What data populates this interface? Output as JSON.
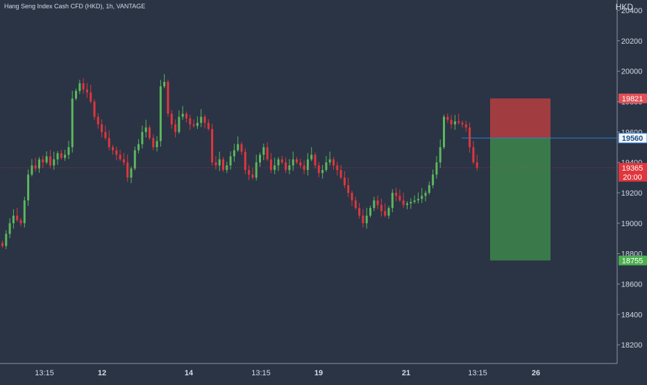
{
  "symbol": "Hang Seng Index Cash CFD (HKD), 1h, VANTAGE",
  "currency": "HKD",
  "colors": {
    "background": "#2a3445",
    "up": "#5cb85c",
    "down": "#e0363d",
    "text": "#d6dbe4",
    "entry_line": "#2f7fd8",
    "stop_zone": "#a13c41",
    "target_zone": "#3a7a4a",
    "stop_badge": "#e04f56",
    "entry_badge": "#1a4f8c",
    "price_badge": "#e0363d",
    "target_badge": "#4caf50"
  },
  "x_axis_labels": [
    "13:15",
    "12",
    "14",
    "13:15",
    "19",
    "21",
    "13:15",
    "26"
  ],
  "badges": {
    "stop": "19821",
    "entry": "19560",
    "price": "19365",
    "countdown": "20:00",
    "target": "18755"
  },
  "chart_data": {
    "type": "candlestick",
    "ylim": [
      18100,
      20450
    ],
    "y_ticks": [
      18200,
      18400,
      18600,
      18800,
      19000,
      19200,
      19400,
      19600,
      19800,
      20000,
      20200,
      20400
    ],
    "stop": 19821,
    "entry": 19560,
    "last_price": 19365,
    "target": 18755,
    "closes": [
      18850,
      18930,
      19000,
      19050,
      19020,
      19000,
      19150,
      19320,
      19380,
      19360,
      19420,
      19400,
      19440,
      19380,
      19420,
      19460,
      19430,
      19450,
      19500,
      19820,
      19870,
      19920,
      19880,
      19860,
      19800,
      19700,
      19650,
      19600,
      19560,
      19500,
      19480,
      19450,
      19420,
      19400,
      19300,
      19360,
      19480,
      19520,
      19600,
      19630,
      19560,
      19500,
      19540,
      19900,
      19930,
      19720,
      19650,
      19600,
      19700,
      19720,
      19690,
      19650,
      19640,
      19660,
      19700,
      19660,
      19620,
      19400,
      19380,
      19420,
      19350,
      19380,
      19440,
      19480,
      19520,
      19470,
      19350,
      19320,
      19300,
      19400,
      19450,
      19500,
      19420,
      19350,
      19380,
      19420,
      19400,
      19350,
      19380,
      19420,
      19400,
      19380,
      19350,
      19420,
      19450,
      19380,
      19330,
      19350,
      19400,
      19420,
      19380,
      19350,
      19300,
      19250,
      19200,
      19150,
      19100,
      19050,
      19000,
      19050,
      19100,
      19150,
      19120,
      19080,
      19050,
      19100,
      19200,
      19180,
      19150,
      19120,
      19130,
      19140,
      19150,
      19160,
      19180,
      19200,
      19250,
      19320,
      19400,
      19500,
      19700,
      19680,
      19650,
      19670,
      19660,
      19650,
      19630,
      19500,
      19400,
      19365
    ]
  }
}
